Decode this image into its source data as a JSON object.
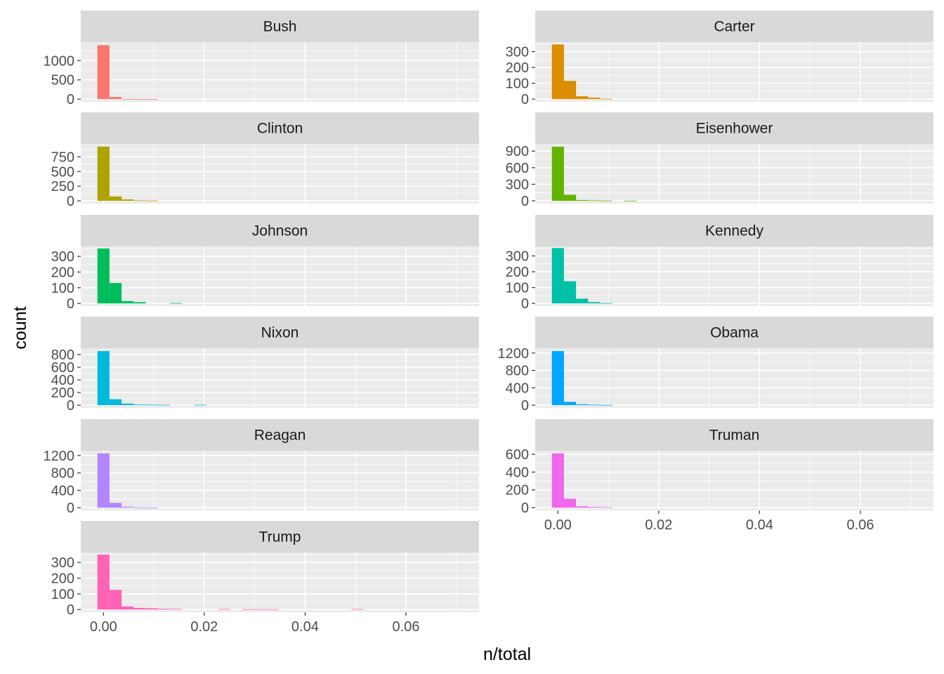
{
  "chart_data": {
    "type": "bar",
    "xlabel": "n/total",
    "ylabel": "count",
    "xlim": [
      -0.0045,
      0.0745
    ],
    "x_ticks": [
      0.0,
      0.02,
      0.04,
      0.06
    ],
    "x_tick_labels": [
      "0.00",
      "0.02",
      "0.04",
      "0.06"
    ],
    "bin_width": 0.0024,
    "bin_centers": [
      0.0,
      0.0024,
      0.0048,
      0.0072,
      0.0096,
      0.012,
      0.0144,
      0.0168,
      0.0192,
      0.0216,
      0.024,
      0.0264,
      0.0288,
      0.0312,
      0.0336,
      0.036,
      0.0384,
      0.0408,
      0.0432,
      0.0456,
      0.048,
      0.0504,
      0.0528,
      0.0552,
      0.0576,
      0.06,
      0.0624,
      0.0648,
      0.0672,
      0.0696
    ],
    "grid": true,
    "legend": "none",
    "panels": [
      {
        "name": "Bush",
        "color": "#F8766D",
        "ylim": [
          -70,
          1480
        ],
        "y_ticks": [
          0,
          500,
          1000
        ],
        "y_tick_labels": [
          "0",
          "500",
          "1000"
        ],
        "counts": [
          1400,
          55,
          5,
          2,
          1,
          0,
          0,
          0,
          0,
          0,
          0,
          0,
          0,
          0,
          0,
          0,
          0,
          0,
          0,
          0,
          0,
          0,
          0,
          0,
          0,
          0,
          0,
          0,
          0,
          0
        ]
      },
      {
        "name": "Carter",
        "color": "#DB8E00",
        "ylim": [
          -17,
          360
        ],
        "y_ticks": [
          0,
          100,
          200,
          300
        ],
        "y_tick_labels": [
          "0",
          "100",
          "200",
          "300"
        ],
        "counts": [
          345,
          115,
          18,
          9,
          2,
          0,
          0,
          0,
          0,
          0,
          0,
          0,
          0,
          0,
          0,
          0,
          0,
          0,
          0,
          0,
          0,
          0,
          0,
          0,
          0,
          0,
          0,
          0,
          0,
          0
        ]
      },
      {
        "name": "Clinton",
        "color": "#AEA200",
        "ylim": [
          -47,
          970
        ],
        "y_ticks": [
          0,
          250,
          500,
          750
        ],
        "y_tick_labels": [
          "0",
          "250",
          "500",
          "750"
        ],
        "counts": [
          925,
          75,
          25,
          8,
          5,
          0,
          0,
          0,
          0,
          0,
          0,
          0,
          0,
          0,
          0,
          0,
          0,
          0,
          0,
          0,
          0,
          0,
          0,
          0,
          0,
          0,
          0,
          0,
          0,
          0
        ]
      },
      {
        "name": "Eisenhower",
        "color": "#64B200",
        "ylim": [
          -50,
          1030
        ],
        "y_ticks": [
          0,
          300,
          600,
          900
        ],
        "y_tick_labels": [
          "0",
          "300",
          "600",
          "900"
        ],
        "counts": [
          980,
          110,
          15,
          8,
          4,
          0,
          3,
          0,
          0,
          0,
          0,
          0,
          0,
          0,
          0,
          0,
          0,
          0,
          0,
          0,
          0,
          0,
          0,
          0,
          0,
          0,
          0,
          0,
          0,
          0
        ]
      },
      {
        "name": "Johnson",
        "color": "#00BD5C",
        "ylim": [
          -17,
          363
        ],
        "y_ticks": [
          0,
          100,
          200,
          300
        ],
        "y_tick_labels": [
          "0",
          "100",
          "200",
          "300"
        ],
        "counts": [
          350,
          130,
          15,
          8,
          0,
          0,
          2,
          0,
          0,
          0,
          0,
          0,
          0,
          0,
          0,
          0,
          0,
          0,
          0,
          0,
          0,
          0,
          0,
          0,
          0,
          0,
          0,
          0,
          0,
          0
        ]
      },
      {
        "name": "Kennedy",
        "color": "#00C1A7",
        "ylim": [
          -17,
          360
        ],
        "y_ticks": [
          0,
          100,
          200,
          300
        ],
        "y_tick_labels": [
          "0",
          "100",
          "200",
          "300"
        ],
        "counts": [
          350,
          140,
          30,
          8,
          2,
          0,
          0,
          0,
          0,
          0,
          0,
          0,
          0,
          0,
          0,
          0,
          0,
          0,
          0,
          0,
          0,
          0,
          0,
          0,
          0,
          0,
          0,
          0,
          0,
          0
        ]
      },
      {
        "name": "Nixon",
        "color": "#00BADE",
        "ylim": [
          -43,
          900
        ],
        "y_ticks": [
          0,
          200,
          400,
          600,
          800
        ],
        "y_tick_labels": [
          "0",
          "200",
          "400",
          "600",
          "800"
        ],
        "counts": [
          855,
          95,
          25,
          10,
          8,
          5,
          0,
          0,
          5,
          0,
          0,
          0,
          0,
          0,
          0,
          0,
          0,
          0,
          0,
          0,
          0,
          0,
          0,
          0,
          0,
          0,
          0,
          0,
          0,
          0
        ]
      },
      {
        "name": "Obama",
        "color": "#00A6FF",
        "ylim": [
          -63,
          1310
        ],
        "y_ticks": [
          0,
          400,
          800,
          1200
        ],
        "y_tick_labels": [
          "0",
          "400",
          "800",
          "1200"
        ],
        "counts": [
          1245,
          75,
          20,
          10,
          5,
          0,
          0,
          0,
          0,
          0,
          0,
          0,
          0,
          0,
          0,
          0,
          0,
          0,
          0,
          0,
          0,
          0,
          0,
          0,
          0,
          0,
          0,
          0,
          0,
          0
        ]
      },
      {
        "name": "Reagan",
        "color": "#B385FF",
        "ylim": [
          -63,
          1310
        ],
        "y_ticks": [
          0,
          400,
          800,
          1200
        ],
        "y_tick_labels": [
          "0",
          "400",
          "800",
          "1200"
        ],
        "counts": [
          1250,
          110,
          20,
          5,
          2,
          0,
          0,
          0,
          0,
          0,
          0,
          0,
          0,
          0,
          0,
          0,
          0,
          0,
          0,
          0,
          0,
          0,
          0,
          0,
          0,
          0,
          0,
          0,
          0,
          0
        ]
      },
      {
        "name": "Truman",
        "color": "#EF67EB",
        "ylim": [
          -31,
          640
        ],
        "y_ticks": [
          0,
          200,
          400,
          600
        ],
        "y_tick_labels": [
          "0",
          "200",
          "400",
          "600"
        ],
        "counts": [
          610,
          100,
          15,
          8,
          5,
          0,
          0,
          0,
          0,
          0,
          0,
          0,
          0,
          0,
          0,
          0,
          0,
          0,
          0,
          0,
          0,
          0,
          0,
          0,
          0,
          0,
          0,
          0,
          0,
          0
        ]
      },
      {
        "name": "Trump",
        "color": "#FF63B6",
        "ylim": [
          -17,
          363
        ],
        "y_ticks": [
          0,
          100,
          200,
          300
        ],
        "y_tick_labels": [
          "0",
          "100",
          "200",
          "300"
        ],
        "counts": [
          350,
          125,
          20,
          10,
          8,
          5,
          4,
          0,
          0,
          0,
          3,
          0,
          2,
          2,
          2,
          0,
          0,
          0,
          0,
          0,
          0,
          3,
          0,
          0,
          0,
          0,
          0,
          0,
          0,
          0
        ]
      }
    ]
  }
}
